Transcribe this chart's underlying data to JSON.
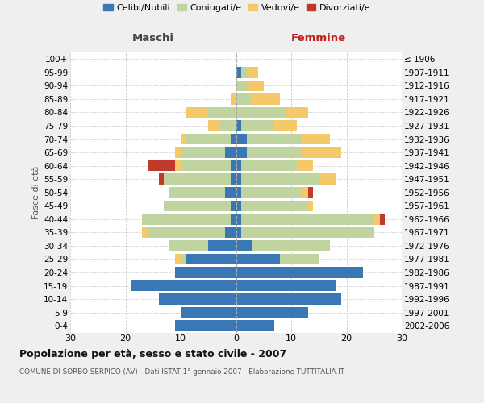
{
  "age_groups": [
    "0-4",
    "5-9",
    "10-14",
    "15-19",
    "20-24",
    "25-29",
    "30-34",
    "35-39",
    "40-44",
    "45-49",
    "50-54",
    "55-59",
    "60-64",
    "65-69",
    "70-74",
    "75-79",
    "80-84",
    "85-89",
    "90-94",
    "95-99",
    "100+"
  ],
  "birth_years": [
    "2002-2006",
    "1997-2001",
    "1992-1996",
    "1987-1991",
    "1982-1986",
    "1977-1981",
    "1972-1976",
    "1967-1971",
    "1962-1966",
    "1957-1961",
    "1952-1956",
    "1947-1951",
    "1942-1946",
    "1937-1941",
    "1932-1936",
    "1927-1931",
    "1922-1926",
    "1917-1921",
    "1912-1916",
    "1907-1911",
    "≤ 1906"
  ],
  "males_celibi": [
    11,
    10,
    14,
    19,
    11,
    9,
    5,
    2,
    1,
    1,
    2,
    1,
    1,
    2,
    1,
    0,
    0,
    0,
    0,
    0,
    0
  ],
  "males_coniugati": [
    0,
    0,
    0,
    0,
    0,
    1,
    7,
    14,
    16,
    12,
    10,
    12,
    9,
    8,
    8,
    3,
    5,
    0,
    0,
    0,
    0
  ],
  "males_vedovi": [
    0,
    0,
    0,
    0,
    0,
    1,
    0,
    1,
    0,
    0,
    0,
    0,
    1,
    1,
    1,
    2,
    4,
    1,
    0,
    0,
    0
  ],
  "males_divorziati": [
    0,
    0,
    0,
    0,
    0,
    0,
    0,
    0,
    0,
    0,
    0,
    1,
    5,
    0,
    0,
    0,
    0,
    0,
    0,
    0,
    0
  ],
  "females_nubili": [
    7,
    13,
    19,
    18,
    23,
    8,
    3,
    1,
    1,
    1,
    1,
    1,
    1,
    2,
    2,
    1,
    0,
    0,
    0,
    1,
    0
  ],
  "females_coniugate": [
    0,
    0,
    0,
    0,
    0,
    7,
    14,
    24,
    24,
    12,
    11,
    14,
    10,
    10,
    10,
    6,
    9,
    3,
    2,
    1,
    0
  ],
  "females_vedove": [
    0,
    0,
    0,
    0,
    0,
    0,
    0,
    0,
    1,
    1,
    1,
    3,
    3,
    7,
    5,
    4,
    4,
    5,
    3,
    2,
    0
  ],
  "females_divorziate": [
    0,
    0,
    0,
    0,
    0,
    0,
    0,
    0,
    1,
    0,
    1,
    0,
    0,
    0,
    0,
    0,
    0,
    0,
    0,
    0,
    0
  ],
  "color_celibi": "#3A78B5",
  "color_coniugati": "#C0D4A0",
  "color_vedovi": "#F5C96A",
  "color_divorziati": "#C0392B",
  "xlim": 30,
  "title": "Popolazione per età, sesso e stato civile - 2007",
  "subtitle": "COMUNE DI SORBO SERPICO (AV) - Dati ISTAT 1° gennaio 2007 - Elaborazione TUTTITALIA.IT",
  "label_maschi": "Maschi",
  "label_femmine": "Femmine",
  "ylabel_left": "Fasce di età",
  "bg_color": "#efefef",
  "plot_bg": "#ffffff",
  "grid_color": "#cccccc"
}
